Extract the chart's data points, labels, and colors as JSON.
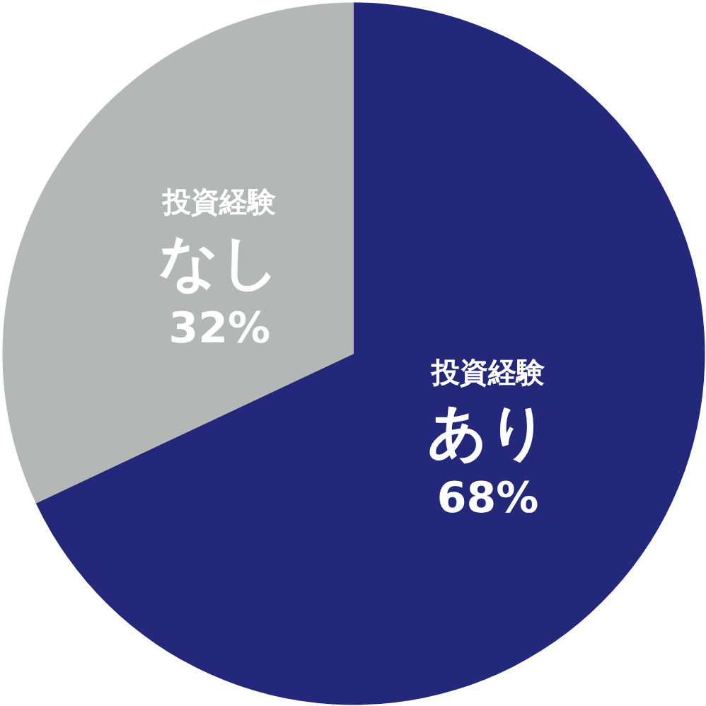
{
  "chart_data": {
    "type": "pie",
    "categories": [
      "投資経験あり",
      "投資経験なし"
    ],
    "values": [
      68,
      32
    ],
    "colors": [
      "#23287a",
      "#b5b6b6"
    ],
    "value_labels": [
      "68%",
      "32%"
    ]
  }
}
